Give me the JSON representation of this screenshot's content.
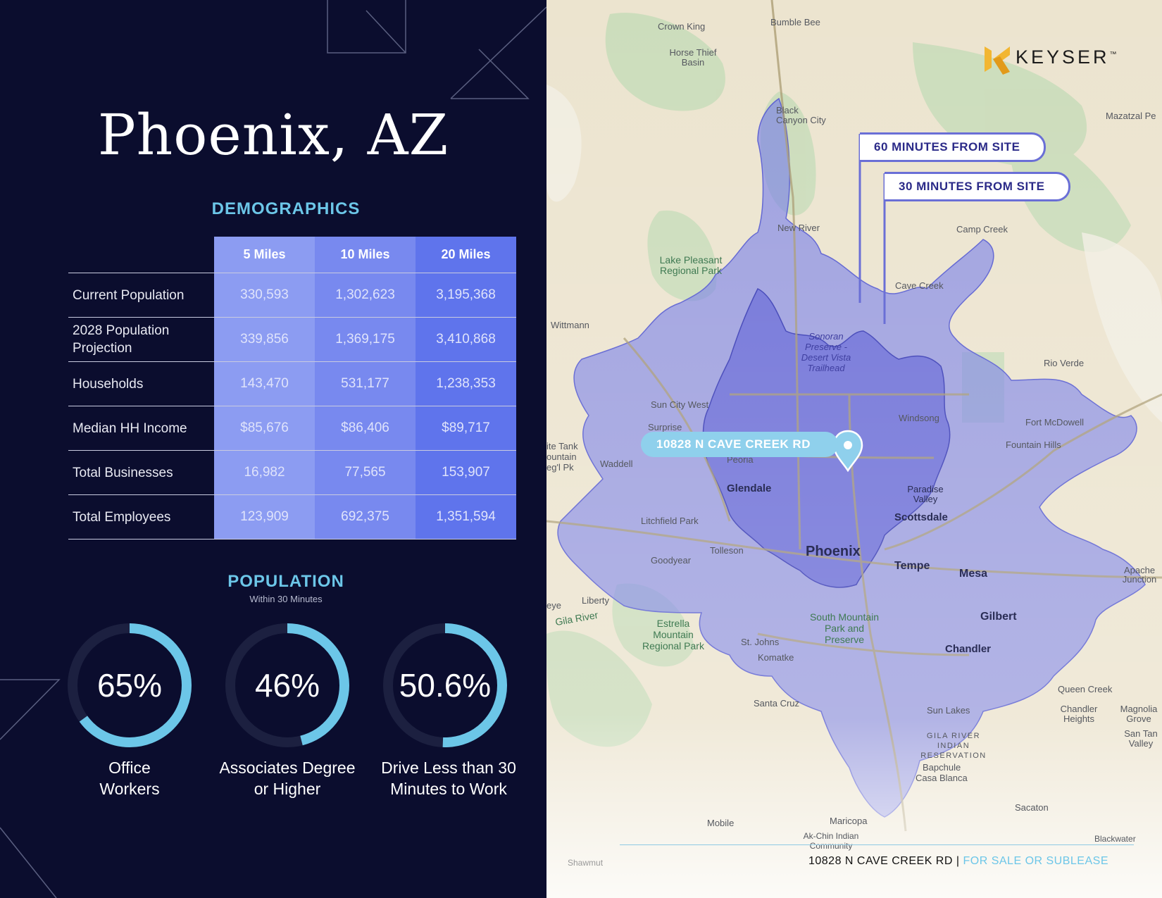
{
  "page_title": "Phoenix, AZ",
  "demographics": {
    "heading": "DEMOGRAPHICS",
    "columns": [
      "5 Miles",
      "10 Miles",
      "20 Miles"
    ],
    "rows": [
      {
        "label": "Current Population",
        "values": [
          "330,593",
          "1,302,623",
          "3,195,368"
        ]
      },
      {
        "label": "2028 Population Projection",
        "values": [
          "339,856",
          "1,369,175",
          "3,410,868"
        ]
      },
      {
        "label": "Households",
        "values": [
          "143,470",
          "531,177",
          "1,238,353"
        ]
      },
      {
        "label": "Median HH Income",
        "values": [
          "$85,676",
          "$86,406",
          "$89,717"
        ]
      },
      {
        "label": "Total Businesses",
        "values": [
          "16,982",
          "77,565",
          "153,907"
        ]
      },
      {
        "label": "Total Employees",
        "values": [
          "123,909",
          "692,375",
          "1,351,594"
        ]
      }
    ]
  },
  "population": {
    "heading": "POPULATION",
    "subheading": "Within 30 Minutes",
    "stats": [
      {
        "value": "65%",
        "fraction": 0.65,
        "label_line1": "Office",
        "label_line2": "Workers"
      },
      {
        "value": "46%",
        "fraction": 0.46,
        "label_line1": "Associates Degree",
        "label_line2": "or Higher"
      },
      {
        "value": "50.6%",
        "fraction": 0.506,
        "label_line1": "Drive Less than 30",
        "label_line2": "Minutes to Work"
      }
    ]
  },
  "map": {
    "callout_60": "60 MINUTES FROM SITE",
    "callout_30": "30 MINUTES FROM SITE",
    "site_address": "10828 N CAVE CREEK RD",
    "place_labels": [
      "Crown King",
      "Bumble Bee",
      "Horse Thief Basin",
      "Black Canyon City",
      "Mazatzal Pe",
      "New River",
      "Camp Creek",
      "Lake Pleasant Regional Park",
      "Cave Creek",
      "Wittmann",
      "Sonoran Preserve -Desert Vista Trailhead",
      "Rio Verde",
      "Sun City West",
      "Surprise",
      "Windsong",
      "Fort McDowell",
      "ite Tank ountain eg'l Pk",
      "Waddell",
      "Peoria",
      "Fountain Hills",
      "Glendale",
      "Paradise Valley",
      "Litchfield Park",
      "Scottsdale",
      "Tolleson",
      "Phoenix",
      "Goodyear",
      "Tempe",
      "Mesa",
      "Apache Junction",
      "Liberty",
      "eye",
      "Gila River",
      "Estrella Mountain Regional Park",
      "South Mountain Park and Preserve",
      "Gilbert",
      "St. Johns",
      "Komatke",
      "Chandler",
      "Santa Cruz",
      "Queen Creek",
      "Chandler Heights",
      "Magnolia Grove",
      "San Tan Valley",
      "Sun Lakes",
      "GILA RIVER INDIAN RESERVATION",
      "Bapchule",
      "Casa Blanca",
      "Sacaton",
      "Mobile",
      "Maricopa",
      "Ak-Chin Indian Community",
      "Blackwater",
      "Shawmut"
    ]
  },
  "logo": {
    "word": "KEYSER",
    "mark": "™"
  },
  "footer": {
    "address": "10828 N CAVE CREEK RD",
    "separator": "|",
    "status": "FOR SALE OR SUBLEASE"
  },
  "colors": {
    "navy": "#0b0d2e",
    "accent": "#6cc6e8",
    "ring_track": "#1c2040",
    "col1": "#8c9cf2",
    "col2": "#7889ef",
    "col3": "#5f74ec",
    "logo_gold": "#f2b632"
  }
}
